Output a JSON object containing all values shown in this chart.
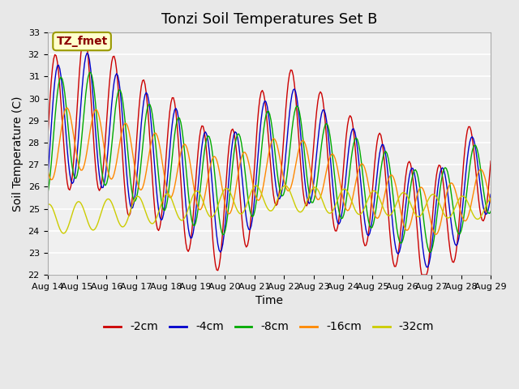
{
  "title": "Tonzi Soil Temperatures Set B",
  "xlabel": "Time",
  "ylabel": "Soil Temperature (C)",
  "ylim": [
    22.0,
    33.0
  ],
  "yticks": [
    22.0,
    23.0,
    24.0,
    25.0,
    26.0,
    27.0,
    28.0,
    29.0,
    30.0,
    31.0,
    32.0,
    33.0
  ],
  "xtick_labels": [
    "Aug 14",
    "Aug 15",
    "Aug 16",
    "Aug 17",
    "Aug 18",
    "Aug 19",
    "Aug 20",
    "Aug 21",
    "Aug 22",
    "Aug 23",
    "Aug 24",
    "Aug 25",
    "Aug 26",
    "Aug 27",
    "Aug 28",
    "Aug 29"
  ],
  "n_days": 15,
  "legend_label": "TZ_fmet",
  "series_labels": [
    "-2cm",
    "-4cm",
    "-8cm",
    "-16cm",
    "-32cm"
  ],
  "series_colors": [
    "#cc0000",
    "#0000cc",
    "#00aa00",
    "#ff8800",
    "#cccc00"
  ],
  "bg_color": "#e8e8e8",
  "plot_bg": "#f0f0f0",
  "title_fontsize": 13,
  "axis_fontsize": 10,
  "tick_fontsize": 8.0,
  "legend_fontsize": 10
}
